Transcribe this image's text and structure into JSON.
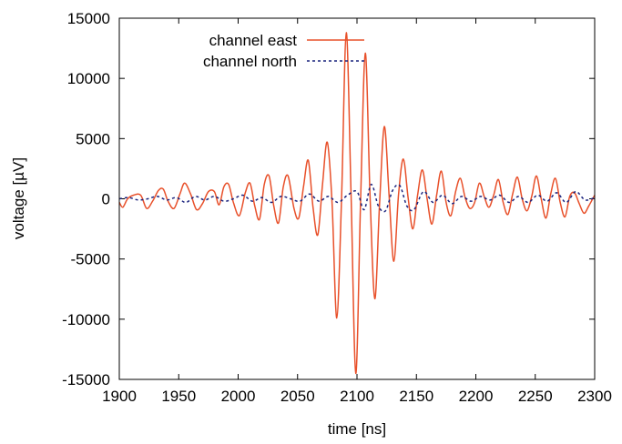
{
  "chart_data": {
    "type": "line",
    "xlabel": "time [ns]",
    "ylabel": "voltage [µV]",
    "xlim": [
      1900,
      2300
    ],
    "ylim": [
      -15000,
      15000
    ],
    "xticks": [
      1900,
      1950,
      2000,
      2050,
      2100,
      2150,
      2200,
      2250,
      2300
    ],
    "yticks": [
      -15000,
      -10000,
      -5000,
      0,
      5000,
      10000,
      15000
    ],
    "xtick_labels": [
      "1900",
      "1950",
      "2000",
      "2050",
      "2100",
      "2150",
      "2200",
      "2250",
      "2300"
    ],
    "ytick_labels": [
      "-15000",
      "-10000",
      "-5000",
      "0",
      "5000",
      "10000",
      "15000"
    ],
    "grid": false,
    "legend_position": "top-left",
    "series": [
      {
        "name": "channel east",
        "color": "#e8502a",
        "style": "solid",
        "x": [
          1900,
          1903,
          1907,
          1912,
          1918,
          1923,
          1928,
          1933,
          1937,
          1941,
          1946,
          1951,
          1955,
          1960,
          1965,
          1970,
          1975,
          1980,
          1984,
          1988,
          1992,
          1996,
          2001,
          2006,
          2010,
          2014,
          2018,
          2022,
          2026,
          2030,
          2034,
          2038,
          2042,
          2047,
          2051,
          2055,
          2059,
          2063,
          2067,
          2071,
          2075,
          2079,
          2083,
          2087,
          2091,
          2095,
          2099,
          2103,
          2107,
          2111,
          2115,
          2119,
          2123,
          2127,
          2131,
          2135,
          2139,
          2143,
          2147,
          2151,
          2155,
          2159,
          2163,
          2167,
          2171,
          2175,
          2179,
          2183,
          2187,
          2191,
          2195,
          2199,
          2203,
          2207,
          2211,
          2215,
          2219,
          2223,
          2227,
          2231,
          2235,
          2239,
          2243,
          2247,
          2251,
          2255,
          2259,
          2263,
          2267,
          2271,
          2275,
          2279,
          2283,
          2287,
          2291,
          2295,
          2300
        ],
        "y": [
          -300,
          -700,
          0,
          300,
          300,
          -800,
          -200,
          700,
          800,
          -200,
          -800,
          400,
          1300,
          400,
          -900,
          -400,
          600,
          600,
          -500,
          1000,
          1200,
          -300,
          -1400,
          500,
          1300,
          -600,
          -1700,
          1200,
          1900,
          -600,
          -2000,
          1000,
          1900,
          -800,
          -1600,
          1000,
          3200,
          -700,
          -3000,
          1200,
          4700,
          -300,
          -9900,
          0,
          13800,
          400,
          -14500,
          -300,
          12100,
          200,
          -8300,
          -400,
          6000,
          300,
          -5200,
          400,
          3300,
          100,
          -2500,
          300,
          2400,
          0,
          -2100,
          300,
          2300,
          -300,
          -1400,
          600,
          1700,
          100,
          -800,
          -300,
          1300,
          200,
          -700,
          300,
          1600,
          -300,
          -1300,
          400,
          1800,
          0,
          -1000,
          200,
          1900,
          0,
          -1600,
          400,
          1700,
          -300,
          -1500,
          200,
          500,
          -400,
          -1200,
          -600,
          300
        ]
      },
      {
        "name": "channel north",
        "color": "#1a237e",
        "style": "dashed",
        "x": [
          1900,
          1908,
          1916,
          1924,
          1932,
          1940,
          1948,
          1956,
          1964,
          1972,
          1980,
          1988,
          1996,
          2004,
          2012,
          2020,
          2028,
          2036,
          2044,
          2052,
          2060,
          2068,
          2076,
          2084,
          2092,
          2100,
          2106,
          2112,
          2118,
          2124,
          2130,
          2136,
          2142,
          2148,
          2156,
          2164,
          2172,
          2180,
          2188,
          2196,
          2204,
          2212,
          2220,
          2228,
          2236,
          2244,
          2252,
          2260,
          2268,
          2276,
          2284,
          2292,
          2300
        ],
        "y": [
          0,
          100,
          -100,
          0,
          200,
          -100,
          100,
          -300,
          200,
          -100,
          200,
          -200,
          0,
          300,
          -200,
          100,
          -300,
          200,
          0,
          -200,
          400,
          -200,
          200,
          -300,
          300,
          600,
          -900,
          1200,
          -600,
          -1000,
          700,
          1100,
          -600,
          -900,
          600,
          -300,
          300,
          -400,
          200,
          -200,
          200,
          -100,
          300,
          -300,
          200,
          -300,
          300,
          -200,
          500,
          -300,
          600,
          -100,
          100
        ]
      }
    ]
  }
}
